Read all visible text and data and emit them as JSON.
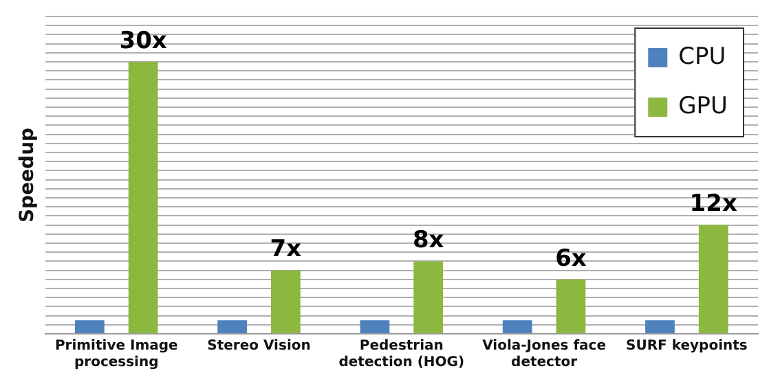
{
  "chart_data": {
    "type": "bar",
    "ylabel": "Speedup",
    "categories": [
      "Primitive Image processing",
      "Stereo Vision",
      "Pedestrian detection (HOG)",
      "Viola-Jones face detector",
      "SURF keypoints"
    ],
    "series": [
      {
        "name": "CPU",
        "color": "#4f81bd",
        "values": [
          1.5,
          1.5,
          1.5,
          1.5,
          1.5
        ]
      },
      {
        "name": "GPU",
        "color": "#8cb840",
        "values": [
          30,
          7,
          8,
          6,
          12
        ],
        "value_labels": [
          "30x",
          "7x",
          "8x",
          "6x",
          "12x"
        ]
      }
    ],
    "ylim": [
      0,
      35
    ],
    "yticks": [
      0,
      1,
      2,
      3,
      4,
      5,
      6,
      7,
      8,
      9,
      10,
      11,
      12,
      13,
      14,
      15,
      16,
      17,
      18,
      19,
      20,
      21,
      22,
      23,
      24,
      25,
      26,
      27,
      28,
      29,
      30,
      31,
      32,
      33,
      34,
      35
    ],
    "tick_labels": "x",
    "grid": "y",
    "legend": "top right"
  }
}
